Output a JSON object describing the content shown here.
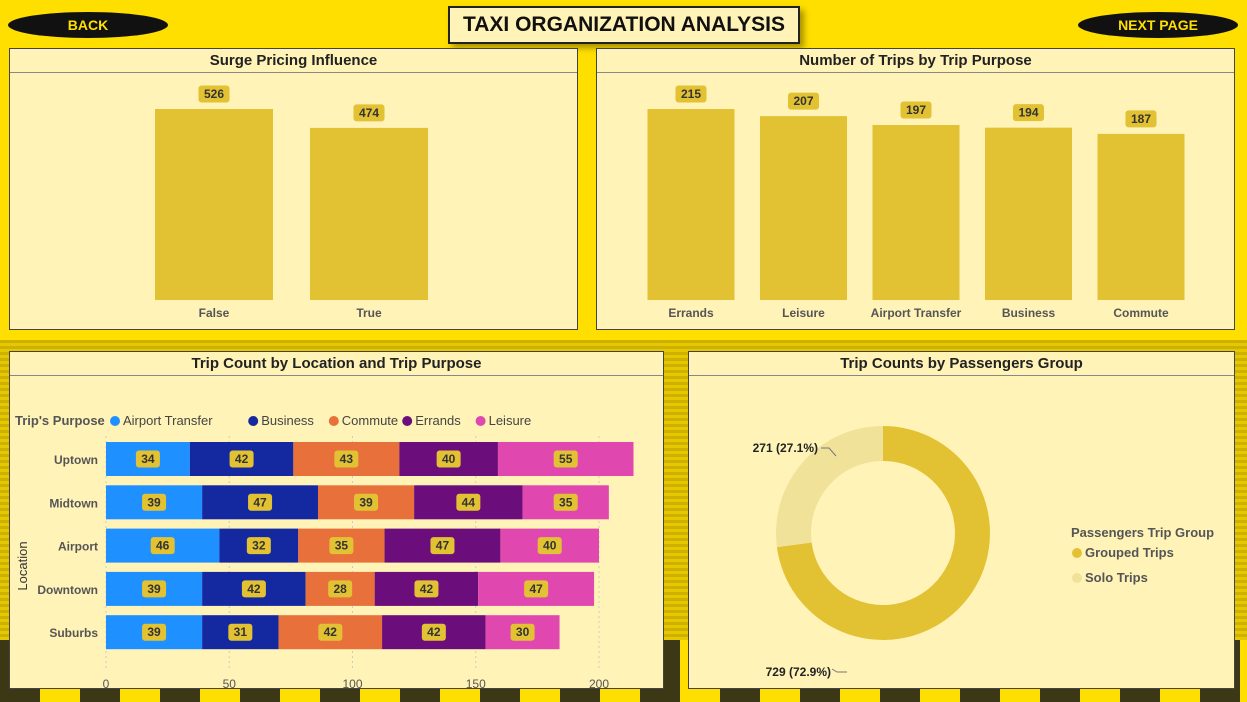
{
  "header": {
    "title": "TAXI ORGANIZATION ANALYSIS",
    "back_label": "BACK",
    "next_label": "NEXT PAGE"
  },
  "colors": {
    "bar": "#E2C233",
    "label_bg": "#E2C233",
    "panel_bg": "#FFF3B8",
    "page_bg": "#FFDF00"
  },
  "chart_data": [
    {
      "id": "surge",
      "type": "bar",
      "title": "Surge Pricing Influence",
      "categories": [
        "False",
        "True"
      ],
      "values": [
        526,
        474
      ],
      "ylim": [
        0,
        526
      ]
    },
    {
      "id": "purpose",
      "type": "bar",
      "title": "Number of Trips by Trip Purpose",
      "categories": [
        "Errands",
        "Leisure",
        "Airport Transfer",
        "Business",
        "Commute"
      ],
      "values": [
        215,
        207,
        197,
        194,
        187
      ],
      "ylim": [
        0,
        215
      ]
    },
    {
      "id": "location",
      "type": "bar",
      "orientation": "horizontal",
      "stacked": true,
      "title": "Trip Count by Location and Trip Purpose",
      "legend_title": "Trip's Purpose",
      "ylabel": "Location",
      "categories": [
        "Uptown",
        "Midtown",
        "Airport",
        "Downtown",
        "Suburbs"
      ],
      "xlim": [
        0,
        200
      ],
      "xticks": [
        0,
        50,
        100,
        150,
        200
      ],
      "series": [
        {
          "name": "Airport Transfer",
          "color": "#1E90FF",
          "values": [
            34,
            39,
            46,
            39,
            39
          ]
        },
        {
          "name": "Business",
          "color": "#1428A0",
          "values": [
            42,
            47,
            32,
            42,
            31
          ]
        },
        {
          "name": "Commute",
          "color": "#E8703A",
          "values": [
            43,
            39,
            35,
            28,
            42
          ]
        },
        {
          "name": "Errands",
          "color": "#6B0D7A",
          "values": [
            40,
            44,
            47,
            42,
            42
          ]
        },
        {
          "name": "Leisure",
          "color": "#E048B0",
          "values": [
            55,
            35,
            40,
            47,
            30
          ]
        }
      ]
    },
    {
      "id": "passengers",
      "type": "pie",
      "donut": true,
      "title": "Trip Counts by Passengers Group",
      "legend_title": "Passengers Trip Group",
      "slices": [
        {
          "name": "Grouped Trips",
          "value": 729,
          "label": "729 (72.9%)",
          "color": "#E2C233"
        },
        {
          "name": "Solo Trips",
          "value": 271,
          "label": "271 (27.1%)",
          "color": "#F1E29A"
        }
      ]
    }
  ]
}
